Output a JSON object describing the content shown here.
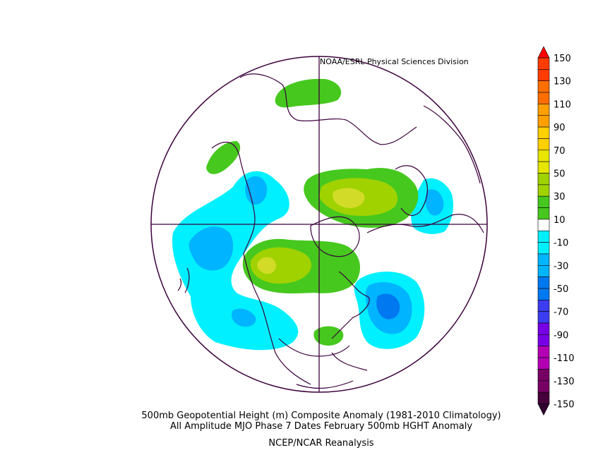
{
  "credit": "NOAA/ESRL Physical Sciences Division",
  "captions": {
    "line1": "500mb Geopotential Height (m) Composite Anomaly (1981-2010 Climatology)",
    "line2": "All Amplitude MJO Phase 7 Dates February 500mb HGHT Anomaly",
    "line3": "NCEP/NCAR Reanalysis"
  },
  "colorbar": {
    "labels": [
      "150",
      "130",
      "110",
      "90",
      "70",
      "50",
      "30",
      "10",
      "-10",
      "-30",
      "-50",
      "-70",
      "-90",
      "-110",
      "-130",
      "-150"
    ],
    "colors": [
      "#ff0000",
      "#ff3c00",
      "#ff6e00",
      "#ffa000",
      "#ffd000",
      "#e6e600",
      "#a0d200",
      "#46c81e",
      "#ffffff",
      "#00f0ff",
      "#00b4ff",
      "#0078f0",
      "#3c3cf0",
      "#7800e6",
      "#b400b4",
      "#780064",
      "#46003c",
      "#300030"
    ]
  },
  "map": {
    "projection": "north-polar-stereographic",
    "colors": {
      "coast": "#3c003c",
      "grid": "#3c003c",
      "pos_10": "#46c81e",
      "pos_30": "#a0d200",
      "pos_50": "#d2dc28",
      "neg_10": "#00f0ff",
      "neg_30": "#00b4ff",
      "neg_50": "#0078f0"
    }
  }
}
